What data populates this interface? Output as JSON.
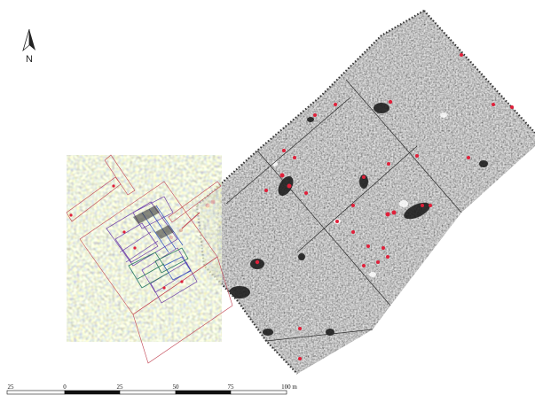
{
  "north_arrow": {
    "label": "N"
  },
  "scale_bar": {
    "unit": "m",
    "ticks": [
      {
        "value": -25,
        "label": "25"
      },
      {
        "value": 0,
        "label": "0"
      },
      {
        "value": 25,
        "label": "25"
      },
      {
        "value": 50,
        "label": "50"
      },
      {
        "value": 75,
        "label": "75"
      },
      {
        "value": 100,
        "label": "100 m"
      }
    ]
  },
  "colors": {
    "survey_dark": "#1a1a1a",
    "survey_mid": "#8c8c8c",
    "survey_light": "#d0d0d0",
    "anomaly": "#e0203a",
    "plan_lines": "#7a3fb0"
  }
}
